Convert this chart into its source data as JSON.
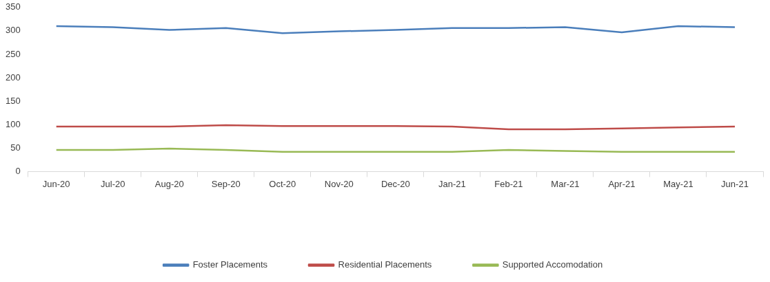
{
  "chart_data": {
    "type": "line",
    "categories": [
      "Jun-20",
      "Jul-20",
      "Aug-20",
      "Sep-20",
      "Oct-20",
      "Nov-20",
      "Dec-20",
      "Jan-21",
      "Feb-21",
      "Mar-21",
      "Apr-21",
      "May-21",
      "Jun-21"
    ],
    "series": [
      {
        "name": "Foster Placements",
        "color": "#4a7ebb",
        "values": [
          310,
          308,
          302,
          306,
          295,
          299,
          302,
          306,
          306,
          308,
          297,
          310,
          308
        ]
      },
      {
        "name": "Residential Placements",
        "color": "#be4b48",
        "values": [
          96,
          96,
          96,
          99,
          97,
          97,
          97,
          96,
          90,
          90,
          92,
          94,
          96
        ]
      },
      {
        "name": "Supported Accomodation",
        "color": "#98b954",
        "values": [
          46,
          46,
          49,
          46,
          42,
          42,
          42,
          42,
          46,
          44,
          42,
          42,
          42
        ]
      }
    ],
    "ylim": [
      0,
      350
    ],
    "yticks": [
      0,
      50,
      100,
      150,
      200,
      250,
      300,
      350
    ],
    "grid": false,
    "legend": "bottom",
    "marker": "none",
    "line_style": "solid"
  }
}
